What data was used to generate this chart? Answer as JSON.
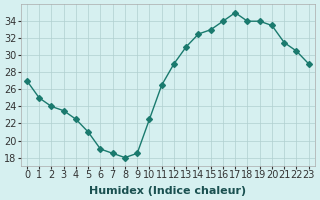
{
  "x": [
    0,
    1,
    2,
    3,
    4,
    5,
    6,
    7,
    8,
    9,
    10,
    11,
    12,
    13,
    14,
    15,
    16,
    17,
    18,
    19,
    20,
    21,
    22,
    23
  ],
  "y": [
    27,
    25,
    24,
    23.5,
    22.5,
    21,
    19,
    18.5,
    18,
    18.5,
    22.5,
    26.5,
    29,
    31,
    32.5,
    33,
    34,
    35,
    34,
    34,
    33.5,
    31.5,
    30.5,
    29
  ],
  "xlabel": "Humidex (Indice chaleur)",
  "line_color": "#1a7a6e",
  "marker": "D",
  "marker_size": 3,
  "bg_color": "#d6f0f0",
  "grid_color": "#b0d0d0",
  "ylim": [
    17,
    36
  ],
  "xlim": [
    -0.5,
    23.5
  ],
  "yticks": [
    18,
    20,
    22,
    24,
    26,
    28,
    30,
    32,
    34
  ],
  "xticks": [
    0,
    1,
    2,
    3,
    4,
    5,
    6,
    7,
    8,
    9,
    10,
    11,
    12,
    13,
    14,
    15,
    16,
    17,
    18,
    19,
    20,
    21,
    22,
    23
  ],
  "tick_fontsize": 7,
  "label_fontsize": 8
}
